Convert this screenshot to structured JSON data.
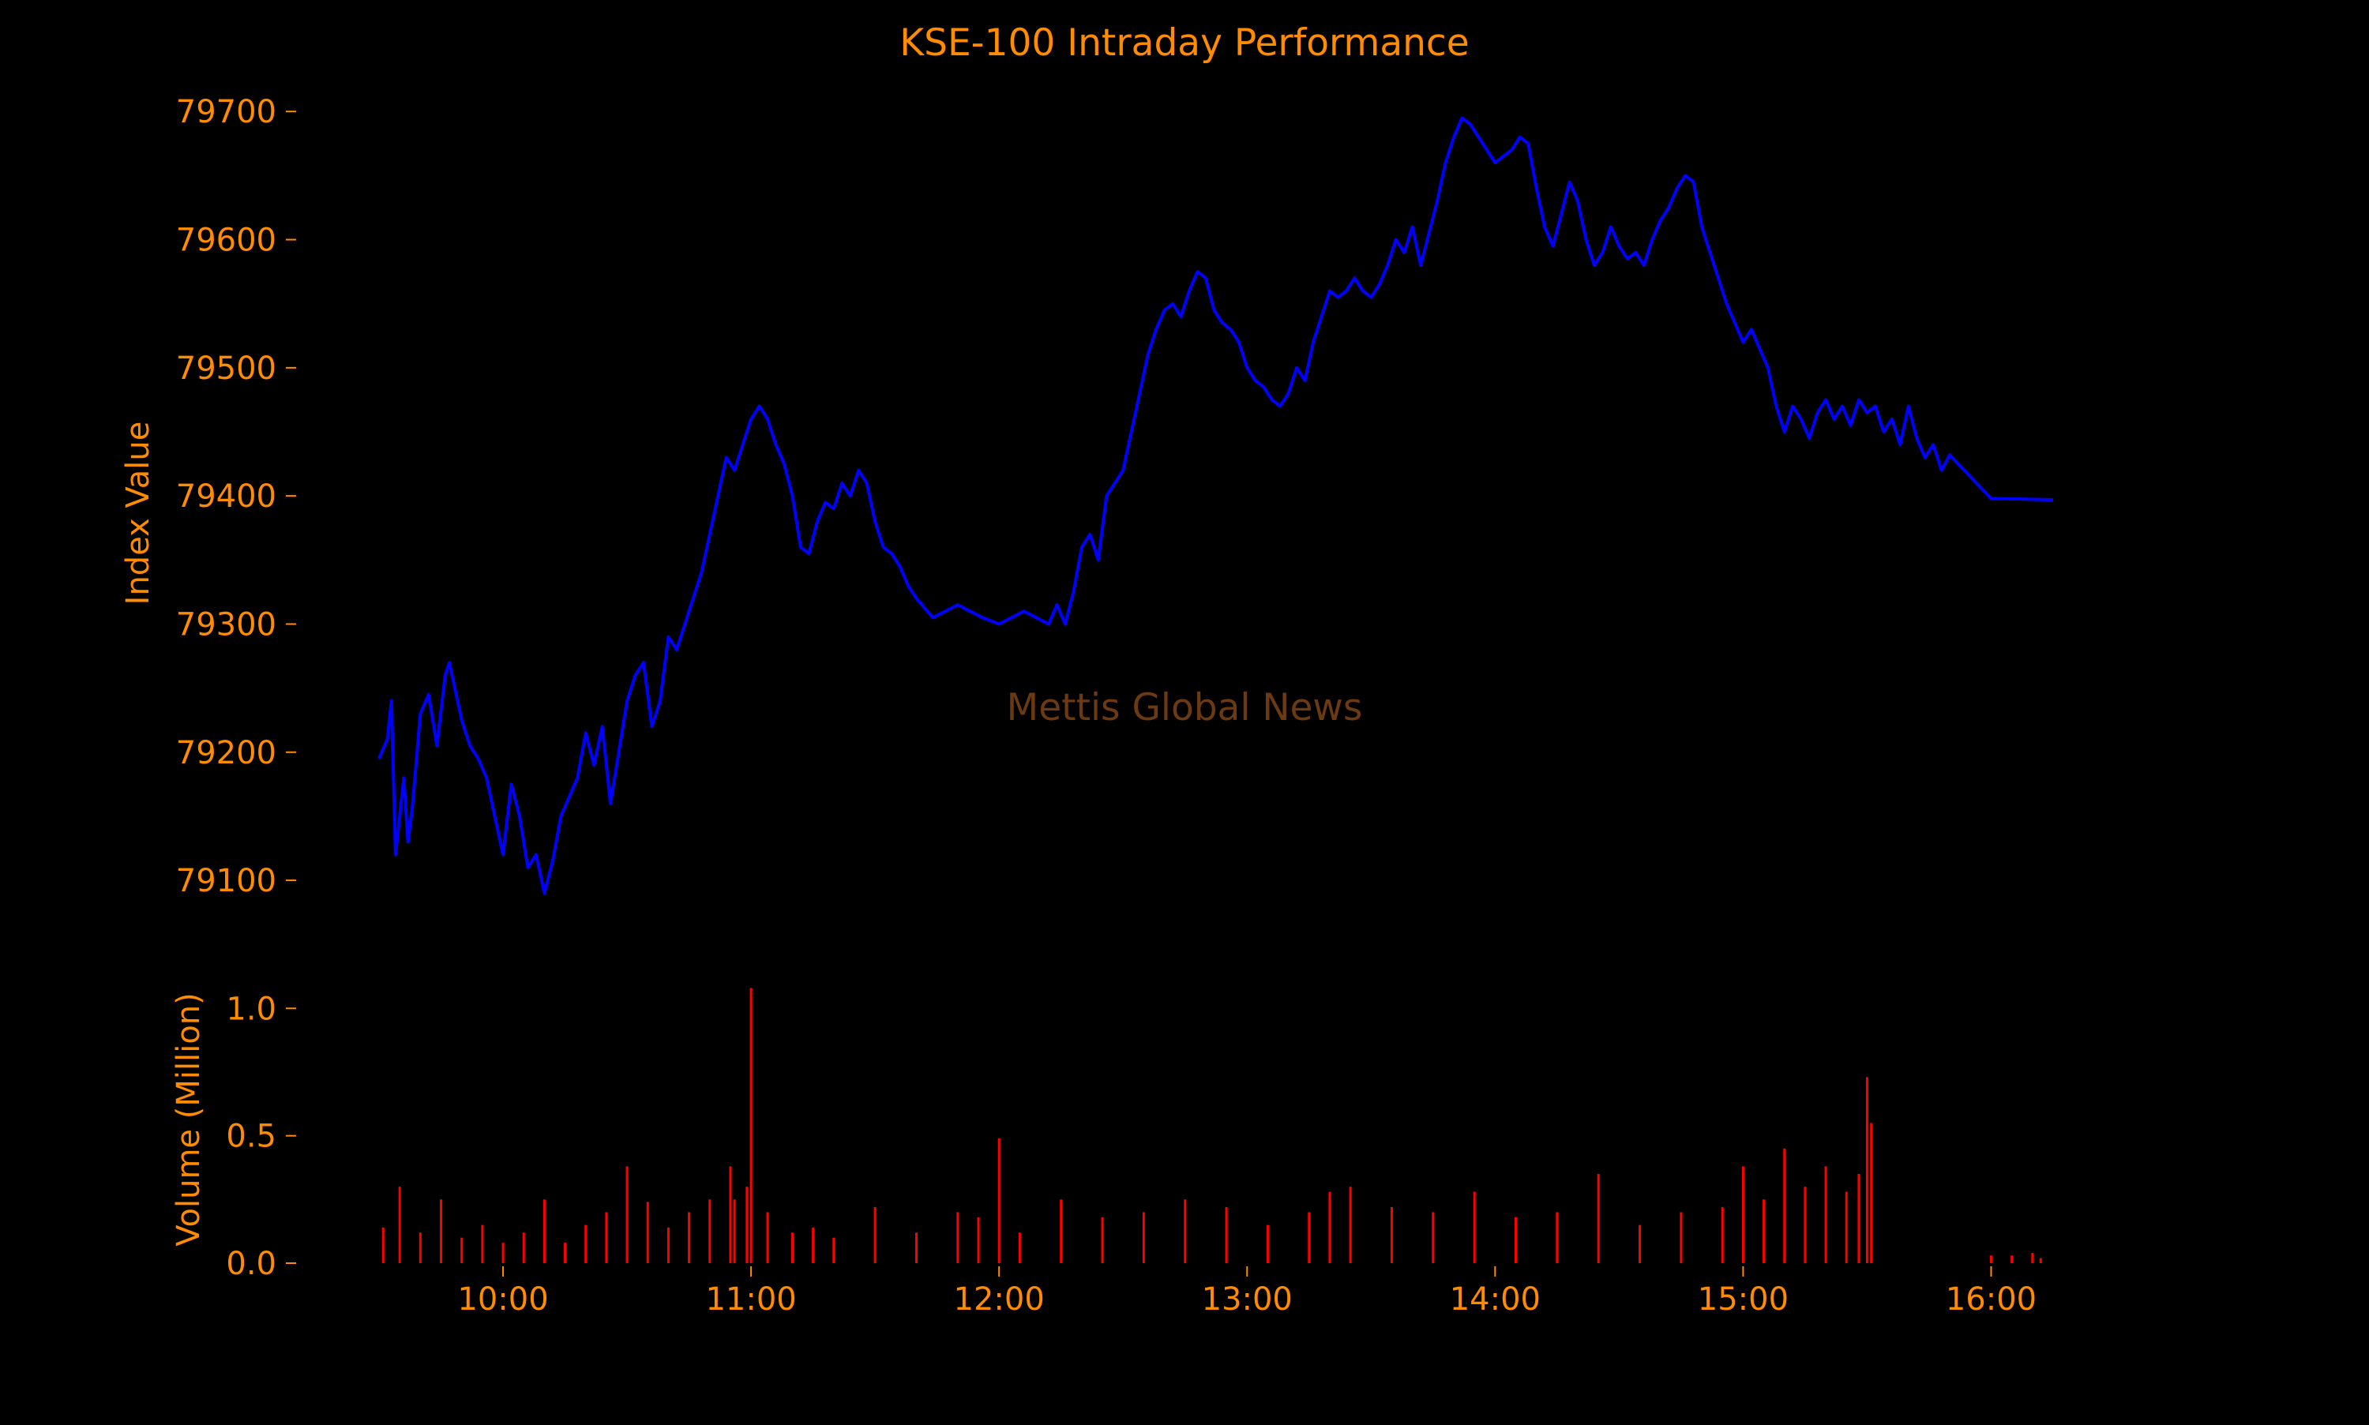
{
  "chart_data": [
    {
      "type": "line",
      "panel": "price",
      "title": "KSE-100 Intraday Performance",
      "watermark": "Mettis Global News",
      "ylabel": "Index Value",
      "xlabel": "",
      "ylim": [
        79060,
        79710
      ],
      "yticks": [
        79100,
        79200,
        79300,
        79400,
        79500,
        79600,
        79700
      ],
      "ytick_labels": [
        "79100",
        "79200",
        "79300",
        "79400",
        "79500",
        "79600",
        "79700"
      ],
      "grid": false,
      "colors": {
        "line": "#0000ff",
        "text": "#ff8c00",
        "watermark": "#6b3a12",
        "background": "#000000"
      },
      "series": [
        {
          "points": [
            [
              "09:30",
              79195
            ],
            [
              "09:32",
              79210
            ],
            [
              "09:33",
              79240
            ],
            [
              "09:34",
              79120
            ],
            [
              "09:36",
              79180
            ],
            [
              "09:37",
              79130
            ],
            [
              "09:38",
              79155
            ],
            [
              "09:40",
              79230
            ],
            [
              "09:42",
              79245
            ],
            [
              "09:44",
              79205
            ],
            [
              "09:46",
              79260
            ],
            [
              "09:47",
              79270
            ],
            [
              "09:48",
              79255
            ],
            [
              "09:50",
              79225
            ],
            [
              "09:52",
              79205
            ],
            [
              "09:54",
              79195
            ],
            [
              "09:56",
              79180
            ],
            [
              "09:58",
              79150
            ],
            [
              "10:00",
              79120
            ],
            [
              "10:02",
              79175
            ],
            [
              "10:04",
              79150
            ],
            [
              "10:06",
              79110
            ],
            [
              "10:08",
              79120
            ],
            [
              "10:10",
              79090
            ],
            [
              "10:12",
              79115
            ],
            [
              "10:14",
              79150
            ],
            [
              "10:16",
              79165
            ],
            [
              "10:18",
              79180
            ],
            [
              "10:20",
              79215
            ],
            [
              "10:22",
              79190
            ],
            [
              "10:24",
              79220
            ],
            [
              "10:26",
              79160
            ],
            [
              "10:28",
              79200
            ],
            [
              "10:30",
              79240
            ],
            [
              "10:32",
              79260
            ],
            [
              "10:34",
              79270
            ],
            [
              "10:36",
              79220
            ],
            [
              "10:38",
              79240
            ],
            [
              "10:40",
              79290
            ],
            [
              "10:42",
              79280
            ],
            [
              "10:44",
              79300
            ],
            [
              "10:46",
              79320
            ],
            [
              "10:48",
              79340
            ],
            [
              "10:50",
              79370
            ],
            [
              "10:52",
              79400
            ],
            [
              "10:54",
              79430
            ],
            [
              "10:56",
              79420
            ],
            [
              "10:58",
              79440
            ],
            [
              "11:00",
              79460
            ],
            [
              "11:02",
              79470
            ],
            [
              "11:04",
              79460
            ],
            [
              "11:06",
              79440
            ],
            [
              "11:08",
              79425
            ],
            [
              "11:10",
              79400
            ],
            [
              "11:12",
              79360
            ],
            [
              "11:14",
              79355
            ],
            [
              "11:16",
              79380
            ],
            [
              "11:18",
              79395
            ],
            [
              "11:20",
              79390
            ],
            [
              "11:22",
              79410
            ],
            [
              "11:24",
              79400
            ],
            [
              "11:26",
              79420
            ],
            [
              "11:28",
              79410
            ],
            [
              "11:30",
              79380
            ],
            [
              "11:32",
              79360
            ],
            [
              "11:34",
              79355
            ],
            [
              "11:36",
              79345
            ],
            [
              "11:38",
              79330
            ],
            [
              "11:40",
              79320
            ],
            [
              "11:44",
              79305
            ],
            [
              "11:50",
              79315
            ],
            [
              "11:56",
              79305
            ],
            [
              "12:00",
              79300
            ],
            [
              "12:06",
              79310
            ],
            [
              "12:12",
              79300
            ],
            [
              "12:14",
              79315
            ],
            [
              "12:16",
              79300
            ],
            [
              "12:18",
              79325
            ],
            [
              "12:20",
              79360
            ],
            [
              "12:22",
              79370
            ],
            [
              "12:24",
              79350
            ],
            [
              "12:26",
              79400
            ],
            [
              "12:28",
              79410
            ],
            [
              "12:30",
              79420
            ],
            [
              "12:32",
              79450
            ],
            [
              "12:34",
              79480
            ],
            [
              "12:36",
              79510
            ],
            [
              "12:38",
              79530
            ],
            [
              "12:40",
              79545
            ],
            [
              "12:42",
              79550
            ],
            [
              "12:44",
              79540
            ],
            [
              "12:46",
              79560
            ],
            [
              "12:48",
              79575
            ],
            [
              "12:50",
              79570
            ],
            [
              "12:52",
              79545
            ],
            [
              "12:54",
              79535
            ],
            [
              "12:56",
              79530
            ],
            [
              "12:58",
              79520
            ],
            [
              "13:00",
              79500
            ],
            [
              "13:02",
              79490
            ],
            [
              "13:04",
              79485
            ],
            [
              "13:06",
              79475
            ],
            [
              "13:08",
              79470
            ],
            [
              "13:10",
              79480
            ],
            [
              "13:12",
              79500
            ],
            [
              "13:14",
              79490
            ],
            [
              "13:16",
              79520
            ],
            [
              "13:18",
              79540
            ],
            [
              "13:20",
              79560
            ],
            [
              "13:22",
              79555
            ],
            [
              "13:24",
              79560
            ],
            [
              "13:26",
              79570
            ],
            [
              "13:28",
              79560
            ],
            [
              "13:30",
              79555
            ],
            [
              "13:32",
              79565
            ],
            [
              "13:34",
              79580
            ],
            [
              "13:36",
              79600
            ],
            [
              "13:38",
              79590
            ],
            [
              "13:40",
              79610
            ],
            [
              "13:42",
              79580
            ],
            [
              "13:44",
              79605
            ],
            [
              "13:46",
              79630
            ],
            [
              "13:48",
              79660
            ],
            [
              "13:50",
              79680
            ],
            [
              "13:52",
              79695
            ],
            [
              "13:54",
              79690
            ],
            [
              "13:56",
              79680
            ],
            [
              "13:58",
              79670
            ],
            [
              "14:00",
              79660
            ],
            [
              "14:02",
              79665
            ],
            [
              "14:04",
              79670
            ],
            [
              "14:06",
              79680
            ],
            [
              "14:08",
              79675
            ],
            [
              "14:10",
              79640
            ],
            [
              "14:12",
              79610
            ],
            [
              "14:14",
              79595
            ],
            [
              "14:16",
              79620
            ],
            [
              "14:18",
              79645
            ],
            [
              "14:20",
              79630
            ],
            [
              "14:22",
              79600
            ],
            [
              "14:24",
              79580
            ],
            [
              "14:26",
              79590
            ],
            [
              "14:28",
              79610
            ],
            [
              "14:30",
              79595
            ],
            [
              "14:32",
              79585
            ],
            [
              "14:34",
              79590
            ],
            [
              "14:36",
              79580
            ],
            [
              "14:38",
              79600
            ],
            [
              "14:40",
              79615
            ],
            [
              "14:42",
              79625
            ],
            [
              "14:44",
              79640
            ],
            [
              "14:46",
              79650
            ],
            [
              "14:48",
              79645
            ],
            [
              "14:50",
              79610
            ],
            [
              "14:52",
              79590
            ],
            [
              "14:54",
              79570
            ],
            [
              "14:56",
              79550
            ],
            [
              "14:58",
              79535
            ],
            [
              "15:00",
              79520
            ],
            [
              "15:02",
              79530
            ],
            [
              "15:04",
              79515
            ],
            [
              "15:06",
              79500
            ],
            [
              "15:08",
              79470
            ],
            [
              "15:10",
              79450
            ],
            [
              "15:12",
              79470
            ],
            [
              "15:14",
              79460
            ],
            [
              "15:16",
              79445
            ],
            [
              "15:18",
              79465
            ],
            [
              "15:20",
              79475
            ],
            [
              "15:22",
              79460
            ],
            [
              "15:24",
              79470
            ],
            [
              "15:26",
              79455
            ],
            [
              "15:28",
              79475
            ],
            [
              "15:30",
              79465
            ],
            [
              "15:32",
              79470
            ],
            [
              "15:34",
              79450
            ],
            [
              "15:36",
              79460
            ],
            [
              "15:38",
              79440
            ],
            [
              "15:40",
              79470
            ],
            [
              "15:42",
              79445
            ],
            [
              "15:44",
              79430
            ],
            [
              "15:46",
              79440
            ],
            [
              "15:48",
              79420
            ],
            [
              "15:50",
              79432
            ],
            [
              "15:52",
              79425
            ],
            [
              "16:00",
              79398
            ],
            [
              "16:15",
              79397
            ]
          ]
        }
      ]
    },
    {
      "type": "bar",
      "panel": "volume",
      "ylabel": "Volume (Million)",
      "xlabel": "",
      "ylim": [
        0,
        1.1
      ],
      "yticks": [
        0,
        0.5,
        1.0
      ],
      "ytick_labels": [
        "0.0",
        "0.5",
        "1.0"
      ],
      "xlim": [
        "09:30",
        "16:15"
      ],
      "xticks": [
        "10:00",
        "11:00",
        "12:00",
        "13:00",
        "14:00",
        "15:00",
        "16:00"
      ],
      "xtick_labels": [
        "10:00",
        "11:00",
        "12:00",
        "13:00",
        "14:00",
        "15:00",
        "16:00"
      ],
      "grid": false,
      "colors": {
        "bar": "#ff0000",
        "text": "#ff8c00",
        "background": "#000000"
      },
      "series": [
        {
          "points": [
            [
              "09:31",
              0.14
            ],
            [
              "09:35",
              0.3
            ],
            [
              "09:40",
              0.12
            ],
            [
              "09:45",
              0.25
            ],
            [
              "09:50",
              0.1
            ],
            [
              "09:55",
              0.15
            ],
            [
              "10:00",
              0.08
            ],
            [
              "10:05",
              0.12
            ],
            [
              "10:10",
              0.25
            ],
            [
              "10:15",
              0.08
            ],
            [
              "10:20",
              0.15
            ],
            [
              "10:25",
              0.2
            ],
            [
              "10:30",
              0.38
            ],
            [
              "10:35",
              0.24
            ],
            [
              "10:40",
              0.14
            ],
            [
              "10:45",
              0.2
            ],
            [
              "10:50",
              0.25
            ],
            [
              "10:55",
              0.38
            ],
            [
              "10:56",
              0.25
            ],
            [
              "10:59",
              0.3
            ],
            [
              "11:00",
              1.08
            ],
            [
              "11:04",
              0.2
            ],
            [
              "11:10",
              0.12
            ],
            [
              "11:15",
              0.14
            ],
            [
              "11:20",
              0.1
            ],
            [
              "11:30",
              0.22
            ],
            [
              "11:40",
              0.12
            ],
            [
              "11:50",
              0.2
            ],
            [
              "11:55",
              0.18
            ],
            [
              "12:00",
              0.49
            ],
            [
              "12:05",
              0.12
            ],
            [
              "12:15",
              0.25
            ],
            [
              "12:25",
              0.18
            ],
            [
              "12:35",
              0.2
            ],
            [
              "12:45",
              0.25
            ],
            [
              "12:55",
              0.22
            ],
            [
              "13:05",
              0.15
            ],
            [
              "13:15",
              0.2
            ],
            [
              "13:20",
              0.28
            ],
            [
              "13:25",
              0.3
            ],
            [
              "13:35",
              0.22
            ],
            [
              "13:45",
              0.2
            ],
            [
              "13:55",
              0.28
            ],
            [
              "14:05",
              0.18
            ],
            [
              "14:15",
              0.2
            ],
            [
              "14:25",
              0.35
            ],
            [
              "14:35",
              0.15
            ],
            [
              "14:45",
              0.2
            ],
            [
              "14:55",
              0.22
            ],
            [
              "15:00",
              0.38
            ],
            [
              "15:05",
              0.25
            ],
            [
              "15:10",
              0.45
            ],
            [
              "15:15",
              0.3
            ],
            [
              "15:20",
              0.38
            ],
            [
              "15:25",
              0.28
            ],
            [
              "15:28",
              0.35
            ],
            [
              "15:30",
              0.73
            ],
            [
              "15:31",
              0.55
            ],
            [
              "16:00",
              0.03
            ],
            [
              "16:05",
              0.03
            ],
            [
              "16:10",
              0.04
            ],
            [
              "16:12",
              0.02
            ]
          ]
        }
      ]
    }
  ]
}
